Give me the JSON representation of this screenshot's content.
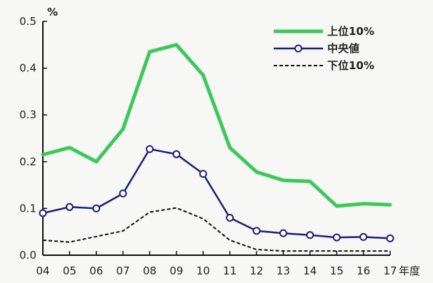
{
  "chart_data": {
    "type": "line",
    "title": "",
    "ylabel": "%",
    "xlabel": "年度",
    "x": [
      "04",
      "05",
      "06",
      "07",
      "08",
      "09",
      "10",
      "11",
      "12",
      "13",
      "14",
      "15",
      "16",
      "17"
    ],
    "ylim": [
      0.0,
      0.5
    ],
    "yticks": [
      "0.0",
      "0.1",
      "0.2",
      "0.3",
      "0.4",
      "0.5"
    ],
    "grid": false,
    "legend_position": "top-right",
    "series": [
      {
        "name": "上位10%",
        "color": "#3cc85a",
        "style": "thick-solid",
        "values": [
          0.215,
          0.23,
          0.2,
          0.27,
          0.435,
          0.45,
          0.385,
          0.23,
          0.178,
          0.16,
          0.158,
          0.105,
          0.11,
          0.108
        ]
      },
      {
        "name": "中央値",
        "color": "#1f1f7a",
        "style": "line-with-circle-markers",
        "values": [
          0.09,
          0.103,
          0.1,
          0.132,
          0.227,
          0.216,
          0.174,
          0.08,
          0.052,
          0.047,
          0.043,
          0.038,
          0.039,
          0.036
        ]
      },
      {
        "name": "下位10%",
        "color": "#111111",
        "style": "dashed",
        "values": [
          0.032,
          0.028,
          0.04,
          0.052,
          0.092,
          0.101,
          0.078,
          0.032,
          0.012,
          0.009,
          0.009,
          0.009,
          0.009,
          0.009
        ]
      }
    ]
  }
}
